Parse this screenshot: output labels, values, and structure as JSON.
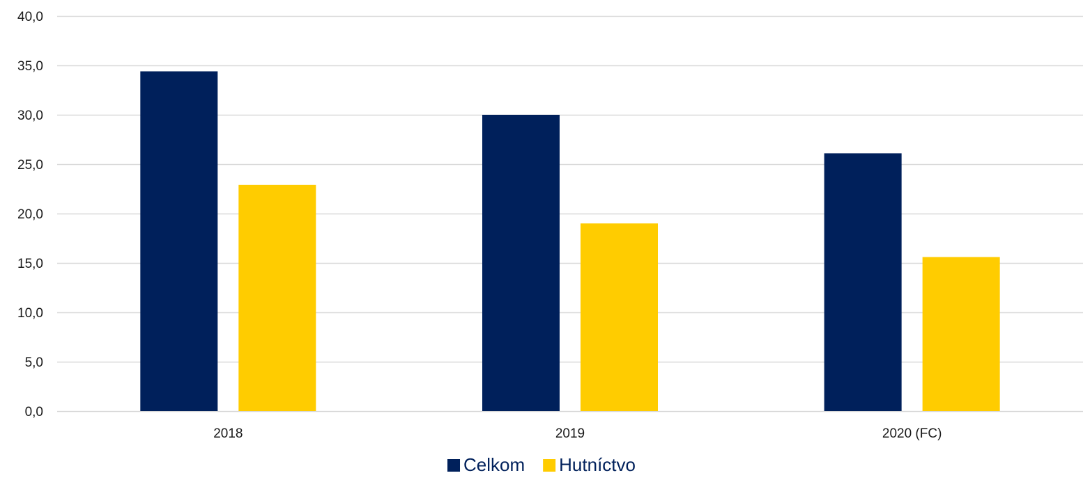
{
  "chart_data": {
    "type": "bar",
    "title": "",
    "xlabel": "",
    "ylabel": "",
    "categories": [
      "2018",
      "2019",
      "2020 (FC)"
    ],
    "series": [
      {
        "name": "Celkom",
        "values": [
          34.4,
          30.0,
          26.1
        ],
        "color": "#00205b"
      },
      {
        "name": "Hutníctvo",
        "values": [
          22.9,
          19.0,
          15.6
        ],
        "color": "#ffcc00"
      }
    ],
    "ylim": [
      0,
      40
    ],
    "yticks": [
      "0,0",
      "5,0",
      "10,0",
      "15,0",
      "20,0",
      "25,0",
      "30,0",
      "35,0",
      "40,0"
    ],
    "ytick_values": [
      0,
      5,
      10,
      15,
      20,
      25,
      30,
      35,
      40
    ],
    "grid": true,
    "legend_position": "bottom-center",
    "gridline_color": "#d9d9d9",
    "text_color": "#1a1a1a",
    "legend_text_color": "#00205b"
  }
}
